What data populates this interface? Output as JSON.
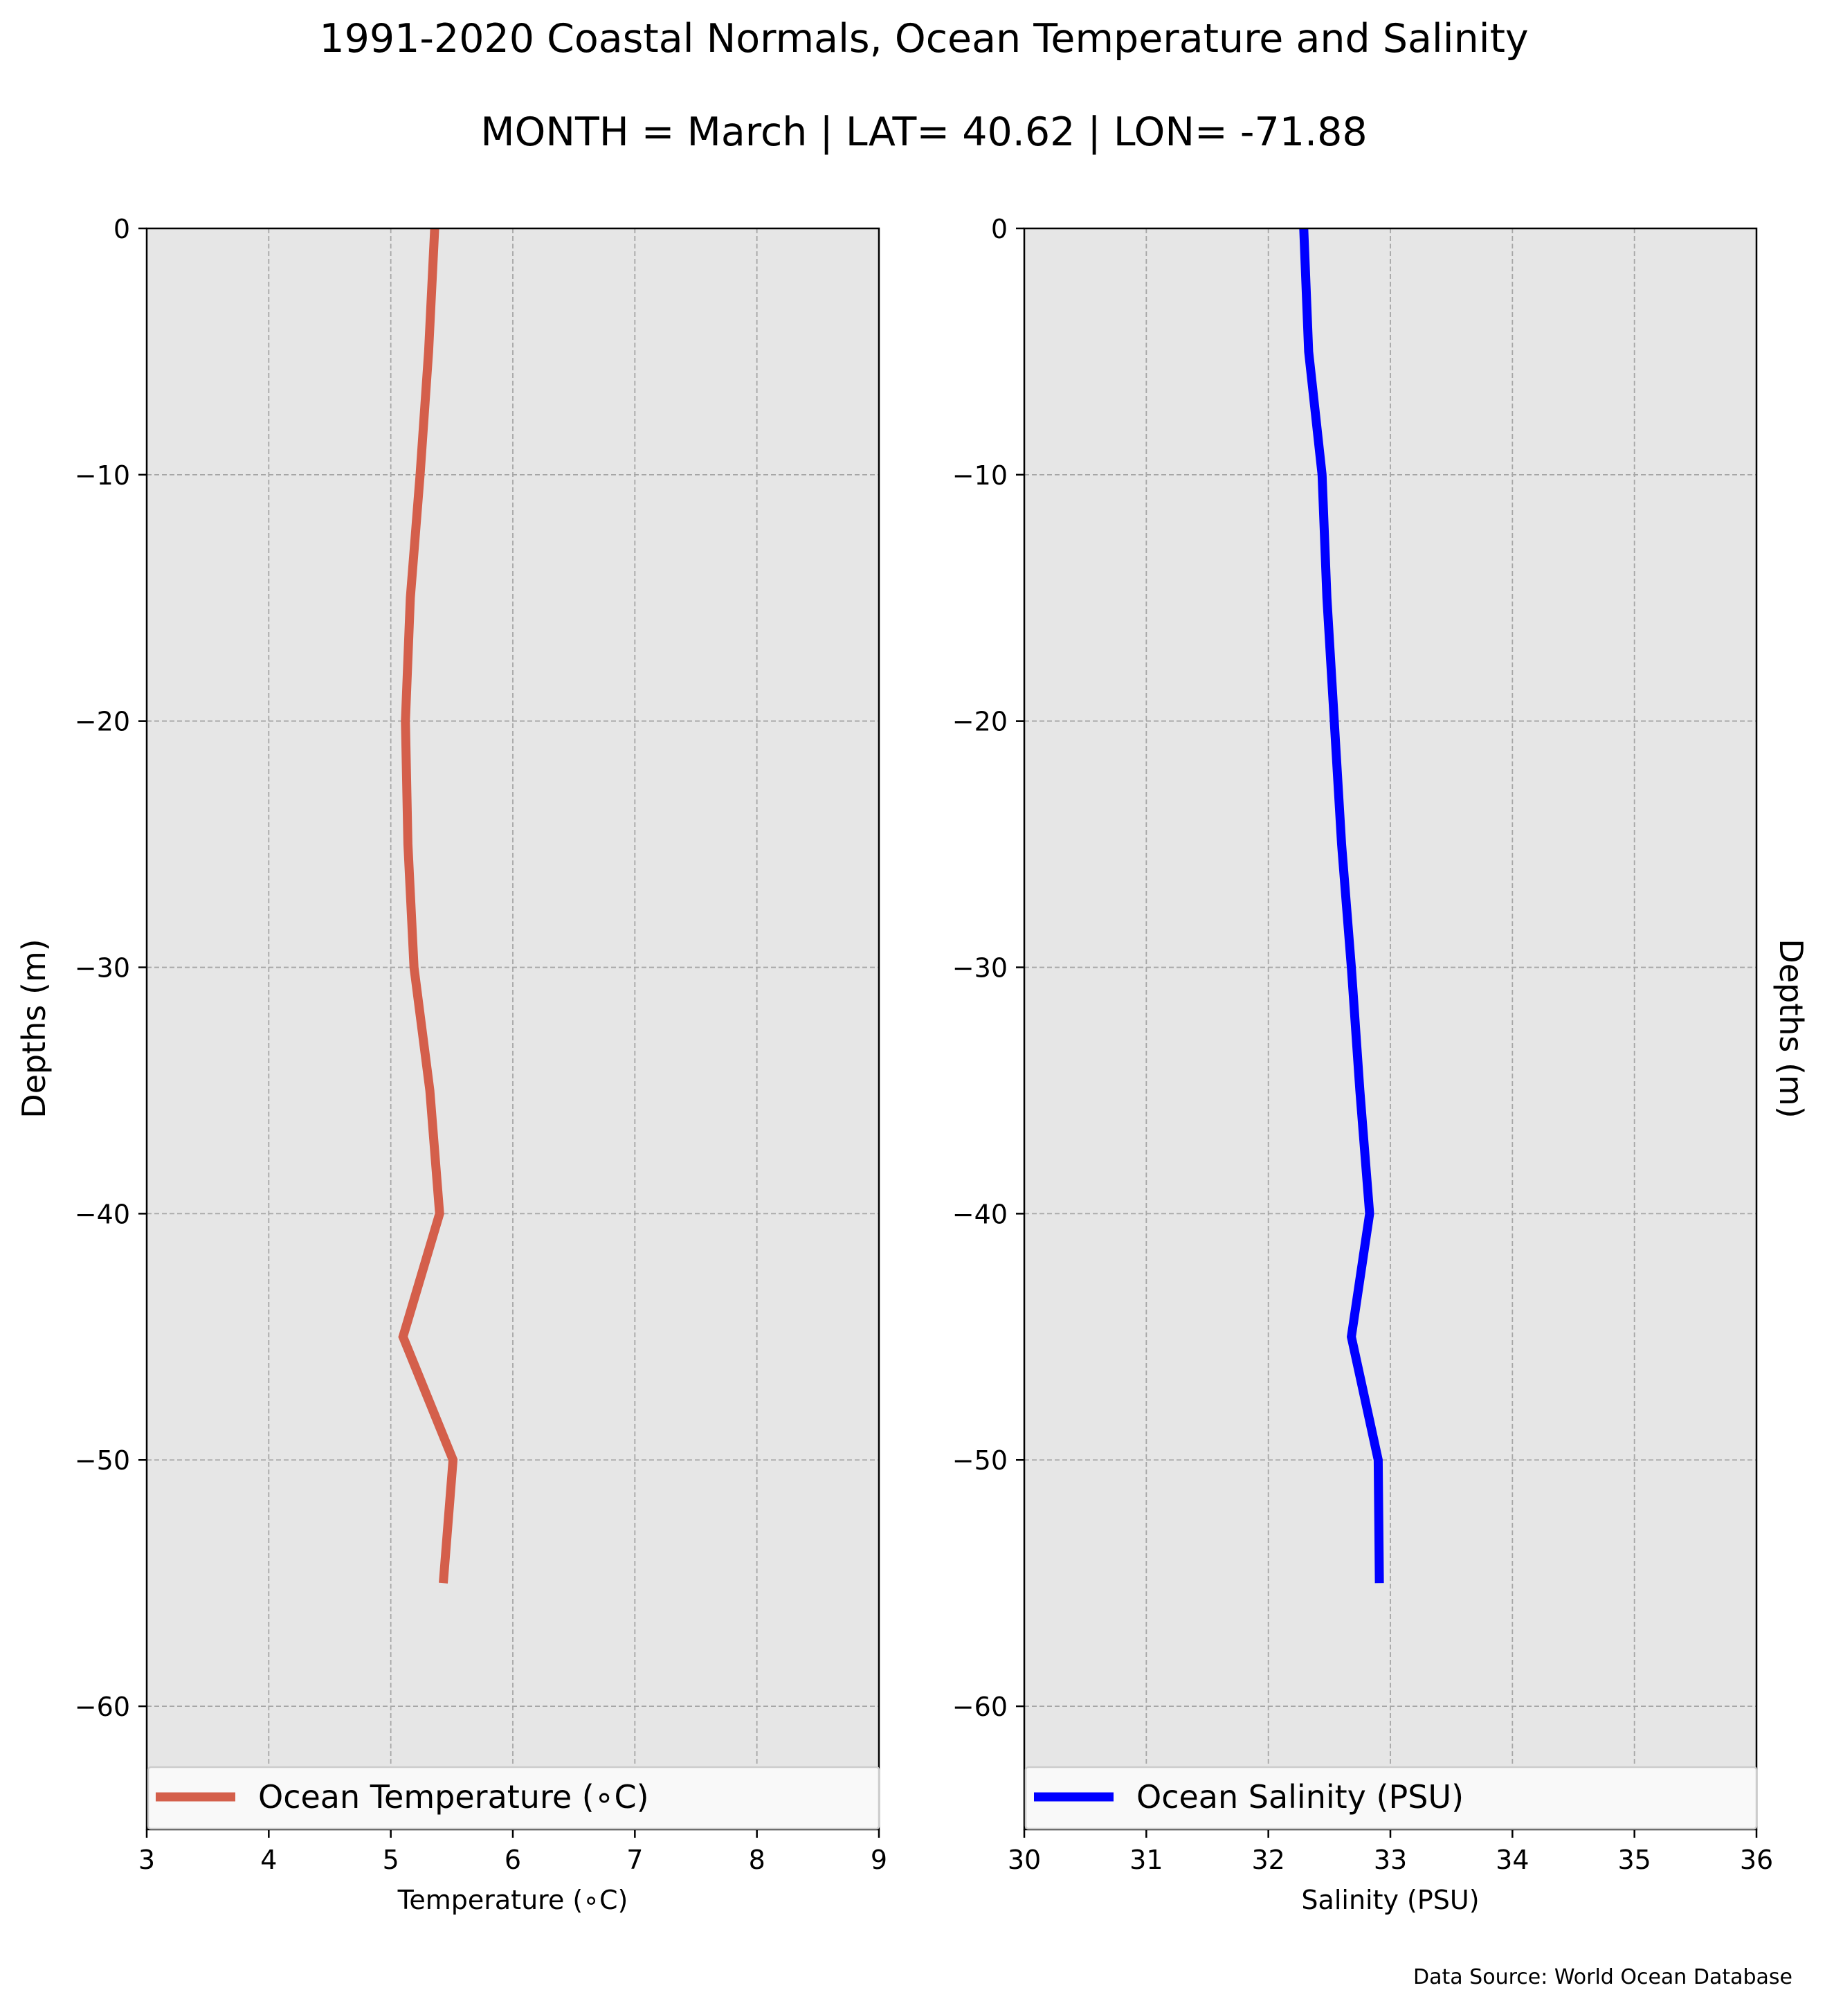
{
  "title_line1": "1991-2020 Coastal Normals, Ocean Temperature and Salinity",
  "title_line2": "MONTH = March | LAT= 40.62 | LON= -71.88",
  "source_note": "Data Source: World Ocean Database",
  "chart_data": [
    {
      "type": "line",
      "panel": "left",
      "xlabel": "Temperature (∘C)",
      "ylabel": "Depths (m)",
      "xlim": [
        3,
        9
      ],
      "ylim": [
        -65,
        0
      ],
      "xticks": [
        3,
        4,
        5,
        6,
        7,
        8,
        9
      ],
      "yticks": [
        0,
        -10,
        -20,
        -30,
        -40,
        -50,
        -60
      ],
      "ytick_labels": [
        "0",
        "−10",
        "−20",
        "−30",
        "−40",
        "−50",
        "−60"
      ],
      "grid": true,
      "legend_position": "lower center",
      "series": [
        {
          "name": "Ocean Temperature (∘C)",
          "color": "#d45f4b",
          "x": [
            5.36,
            5.31,
            5.24,
            5.16,
            5.12,
            5.14,
            5.19,
            5.32,
            5.4,
            5.1,
            5.51,
            5.43
          ],
          "y": [
            0,
            -5,
            -10,
            -15,
            -20,
            -25,
            -30,
            -35,
            -40,
            -45,
            -50,
            -55
          ]
        }
      ]
    },
    {
      "type": "line",
      "panel": "right",
      "xlabel": "Salinity (PSU)",
      "ylabel": "Depths (m)",
      "xlim": [
        30,
        36
      ],
      "ylim": [
        -65,
        0
      ],
      "xticks": [
        30,
        31,
        32,
        33,
        34,
        35,
        36
      ],
      "yticks": [
        0,
        -10,
        -20,
        -30,
        -40,
        -50,
        -60
      ],
      "ytick_labels": [
        "0",
        "−10",
        "−20",
        "−30",
        "−40",
        "−50",
        "−60"
      ],
      "grid": true,
      "legend_position": "lower center",
      "series": [
        {
          "name": "Ocean Salinity (PSU)",
          "color": "#0000ff",
          "x": [
            32.29,
            32.33,
            32.44,
            32.48,
            32.54,
            32.6,
            32.68,
            32.75,
            32.83,
            32.68,
            32.9,
            32.91
          ],
          "y": [
            0,
            -5,
            -10,
            -15,
            -20,
            -25,
            -30,
            -35,
            -40,
            -45,
            -50,
            -55
          ]
        }
      ]
    }
  ]
}
